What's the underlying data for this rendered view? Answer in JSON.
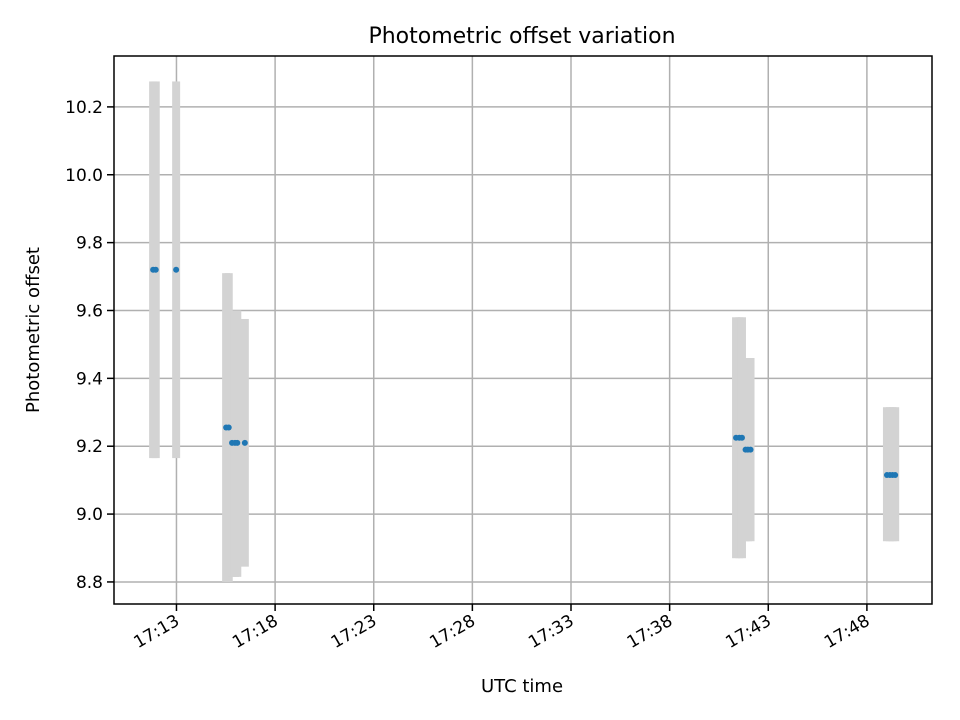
{
  "chart_data": {
    "type": "scatter",
    "title": "Photometric offset variation",
    "xlabel": "UTC time",
    "ylabel": "Photometric offset",
    "xlim": [
      "17:09:50",
      "17:51:18"
    ],
    "ylim": [
      8.735,
      10.35
    ],
    "grid": true,
    "x_ticks": [
      "17:13",
      "17:18",
      "17:23",
      "17:28",
      "17:33",
      "17:38",
      "17:43",
      "17:48"
    ],
    "y_ticks": [
      "8.8",
      "9.0",
      "9.2",
      "9.4",
      "9.6",
      "9.8",
      "10.0",
      "10.2"
    ],
    "colors": {
      "points": "#1f77b4",
      "error_bars": "#d3d3d3",
      "grid": "#b0b0b0"
    },
    "series": [
      {
        "points": [
          {
            "x": "17:11:49",
            "y": 9.72,
            "err_low": 9.165,
            "err_high": 10.275
          },
          {
            "x": "17:11:57",
            "y": 9.72,
            "err_low": 9.165,
            "err_high": 10.275
          },
          {
            "x": "17:12:59",
            "y": 9.72,
            "err_low": 9.165,
            "err_high": 10.275
          },
          {
            "x": "17:15:31",
            "y": 9.255,
            "err_low": 8.8,
            "err_high": 9.71
          },
          {
            "x": "17:15:39",
            "y": 9.255,
            "err_low": 8.8,
            "err_high": 9.71
          },
          {
            "x": "17:15:49",
            "y": 9.21,
            "err_low": 8.815,
            "err_high": 9.6
          },
          {
            "x": "17:15:58",
            "y": 9.21,
            "err_low": 8.815,
            "err_high": 9.6
          },
          {
            "x": "17:16:05",
            "y": 9.21,
            "err_low": 8.815,
            "err_high": 9.6
          },
          {
            "x": "17:16:28",
            "y": 9.21,
            "err_low": 8.845,
            "err_high": 9.575
          },
          {
            "x": "17:41:22",
            "y": 9.225,
            "err_low": 8.87,
            "err_high": 9.58
          },
          {
            "x": "17:41:32",
            "y": 9.225,
            "err_low": 8.87,
            "err_high": 9.58
          },
          {
            "x": "17:41:40",
            "y": 9.225,
            "err_low": 8.87,
            "err_high": 9.58
          },
          {
            "x": "17:41:51",
            "y": 9.19,
            "err_low": 8.92,
            "err_high": 9.46
          },
          {
            "x": "17:41:58",
            "y": 9.19,
            "err_low": 8.92,
            "err_high": 9.46
          },
          {
            "x": "17:42:06",
            "y": 9.19,
            "err_low": 8.92,
            "err_high": 9.46
          },
          {
            "x": "17:49:01",
            "y": 9.115,
            "err_low": 8.92,
            "err_high": 9.315
          },
          {
            "x": "17:49:10",
            "y": 9.115,
            "err_low": 8.92,
            "err_high": 9.315
          },
          {
            "x": "17:49:18",
            "y": 9.115,
            "err_low": 8.92,
            "err_high": 9.315
          },
          {
            "x": "17:49:26",
            "y": 9.115,
            "err_low": 8.92,
            "err_high": 9.315
          }
        ]
      }
    ]
  }
}
